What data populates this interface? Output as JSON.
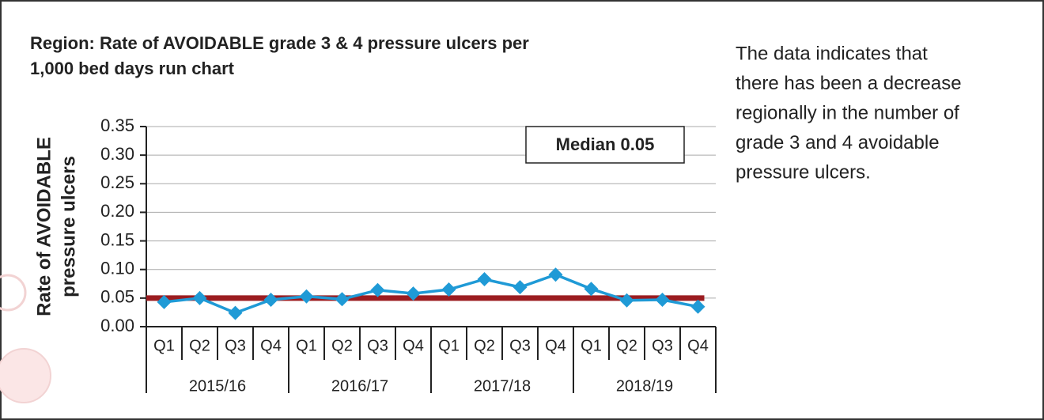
{
  "chart_data": {
    "type": "line",
    "title": [
      "Region: Rate of AVOIDABLE grade 3 & 4 pressure ulcers per",
      "1,000 bed days run chart"
    ],
    "y_label": [
      "Rate of AVOIDABLE",
      "pressure ulcers"
    ],
    "categories": [
      "Q1",
      "Q2",
      "Q3",
      "Q4",
      "Q1",
      "Q2",
      "Q3",
      "Q4",
      "Q1",
      "Q2",
      "Q3",
      "Q4",
      "Q1",
      "Q2",
      "Q3",
      "Q4"
    ],
    "groups": [
      "2015/16",
      "2016/17",
      "2017/18",
      "2018/19"
    ],
    "series": [
      {
        "color": "#1f9ad6",
        "values": [
          0.043,
          0.05,
          0.024,
          0.047,
          0.053,
          0.048,
          0.064,
          0.058,
          0.065,
          0.083,
          0.069,
          0.091,
          0.066,
          0.046,
          0.047,
          0.035
        ]
      }
    ],
    "median": {
      "label": "Median 0.05",
      "value": 0.05,
      "color": "#9b1c20"
    },
    "ylim": [
      0,
      0.35
    ],
    "yticks": [
      {
        "value": 0,
        "label": "0.00"
      },
      0.05,
      {
        "value": 0.1,
        "label": "0.10"
      },
      0.15,
      {
        "value": 0.2,
        "label": "0.20"
      },
      0.25,
      {
        "value": 0.3,
        "label": "0.30"
      },
      0.35
    ],
    "grid": true
  },
  "note": {
    "lines": [
      "The data indicates that",
      "there has been a decrease",
      "regionally in the number of",
      "grade 3 and 4 avoidable",
      "pressure ulcers."
    ]
  }
}
